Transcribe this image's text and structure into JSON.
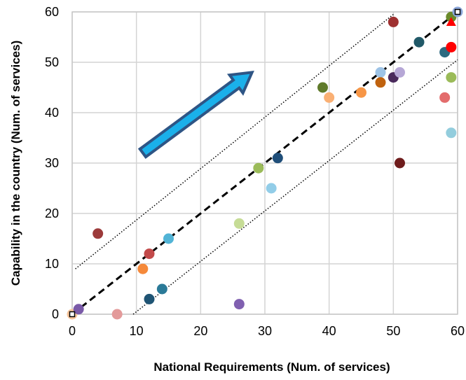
{
  "chart_data": {
    "type": "scatter",
    "xlabel": "National Requirements (Num. of services)",
    "ylabel": "Capability in the country (Num. of services)",
    "xlim": [
      0,
      60
    ],
    "ylim": [
      0,
      60
    ],
    "x_ticks": [
      0,
      10,
      20,
      30,
      40,
      50,
      60
    ],
    "y_ticks": [
      0,
      10,
      20,
      30,
      40,
      50,
      60
    ],
    "grid": true,
    "legend": "none",
    "reference_lines": [
      {
        "style": "dashed-bold",
        "color": "#000000",
        "points": [
          [
            0,
            0
          ],
          [
            60,
            60
          ]
        ]
      },
      {
        "style": "dotted",
        "color": "#000000",
        "points": [
          [
            0.5,
            9
          ],
          [
            50,
            59.5
          ]
        ]
      },
      {
        "style": "dotted",
        "color": "#000000",
        "points": [
          [
            9.5,
            0
          ],
          [
            60,
            50.5
          ]
        ]
      }
    ],
    "arrow": {
      "from": [
        11,
        32
      ],
      "to": [
        28,
        48
      ],
      "fill": "#1ab0ea",
      "stroke": "#2e5585"
    },
    "markers": [
      {
        "x": 0,
        "y": 0,
        "shape": "square-open",
        "color": "#000000"
      },
      {
        "x": 60,
        "y": 60,
        "shape": "square-open",
        "color": "#000000"
      }
    ],
    "points": [
      {
        "x": 0,
        "y": 0,
        "color": "#f7c59b"
      },
      {
        "x": 1,
        "y": 1,
        "color": "#7a5aa8"
      },
      {
        "x": 4,
        "y": 16,
        "color": "#9c3a3a"
      },
      {
        "x": 7,
        "y": 0,
        "color": "#e39a9a"
      },
      {
        "x": 11,
        "y": 9,
        "color": "#f5893a"
      },
      {
        "x": 12,
        "y": 12,
        "color": "#c24a4a"
      },
      {
        "x": 12,
        "y": 3,
        "color": "#1f5474"
      },
      {
        "x": 14,
        "y": 5,
        "color": "#2b7a98"
      },
      {
        "x": 15,
        "y": 15,
        "color": "#52b4d6"
      },
      {
        "x": 26,
        "y": 18,
        "color": "#c6dc96"
      },
      {
        "x": 26,
        "y": 2,
        "color": "#8060b0"
      },
      {
        "x": 29,
        "y": 29,
        "color": "#9bbb59"
      },
      {
        "x": 31,
        "y": 25,
        "color": "#92cde8"
      },
      {
        "x": 32,
        "y": 31,
        "color": "#1f4e79"
      },
      {
        "x": 39,
        "y": 45,
        "color": "#5f7a2a"
      },
      {
        "x": 40,
        "y": 43,
        "color": "#fab074"
      },
      {
        "x": 45,
        "y": 44,
        "color": "#f79646"
      },
      {
        "x": 48,
        "y": 48,
        "color": "#9dc3e6"
      },
      {
        "x": 48,
        "y": 46,
        "color": "#c0620e"
      },
      {
        "x": 50,
        "y": 58,
        "color": "#9e3030"
      },
      {
        "x": 50,
        "y": 47,
        "color": "#4a2a5c"
      },
      {
        "x": 51,
        "y": 48,
        "color": "#b6a7d6"
      },
      {
        "x": 51,
        "y": 30,
        "color": "#6e1c1c"
      },
      {
        "x": 54,
        "y": 54,
        "color": "#215968"
      },
      {
        "x": 58,
        "y": 52,
        "color": "#2c6a80"
      },
      {
        "x": 58,
        "y": 43,
        "color": "#e36c6c"
      },
      {
        "x": 59,
        "y": 59,
        "color": "#6b8a2a"
      },
      {
        "x": 59,
        "y": 58,
        "color": "#ff0000",
        "shape": "triangle"
      },
      {
        "x": 59,
        "y": 53,
        "color": "#ff0000"
      },
      {
        "x": 59,
        "y": 47,
        "color": "#9bbb59"
      },
      {
        "x": 59,
        "y": 36,
        "color": "#93cddd"
      },
      {
        "x": 60,
        "y": 60,
        "color": "#8ea9db"
      }
    ]
  }
}
